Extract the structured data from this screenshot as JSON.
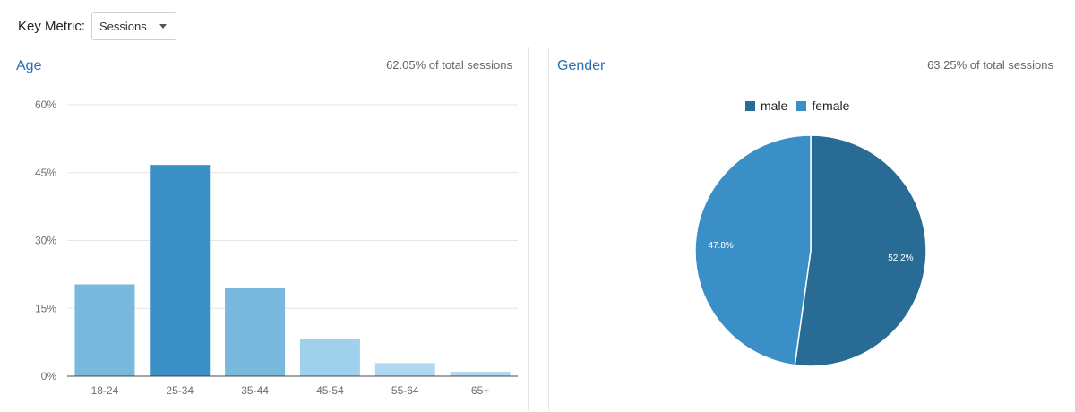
{
  "toolbar": {
    "key_metric_label": "Key Metric:",
    "metric_selected": "Sessions"
  },
  "age_panel": {
    "title": "Age",
    "share_text": "62.05% of total sessions"
  },
  "gender_panel": {
    "title": "Gender",
    "share_text": "63.25% of total sessions"
  },
  "chart_data": [
    {
      "type": "bar",
      "title": "Age",
      "categories": [
        "18-24",
        "25-34",
        "35-44",
        "45-54",
        "55-64",
        "65+"
      ],
      "values": [
        20.3,
        46.7,
        19.6,
        8.2,
        2.9,
        1.0
      ],
      "bar_colors": [
        "#78b9dd",
        "#3a8fc7",
        "#78b9dd",
        "#9fd0ec",
        "#b0d9f1",
        "#b0d9f1"
      ],
      "ylim": [
        0,
        60
      ],
      "yticks": [
        0,
        15,
        30,
        45,
        60
      ],
      "ytick_labels": [
        "0%",
        "15%",
        "30%",
        "45%",
        "60%"
      ],
      "grid": true
    },
    {
      "type": "pie",
      "title": "Gender",
      "labels": [
        "male",
        "female"
      ],
      "values": [
        52.2,
        47.8
      ],
      "value_labels": [
        "52.2%",
        "47.8%"
      ],
      "colors": [
        "#286c96",
        "#3a8fc7"
      ],
      "legend_position": "top"
    }
  ]
}
